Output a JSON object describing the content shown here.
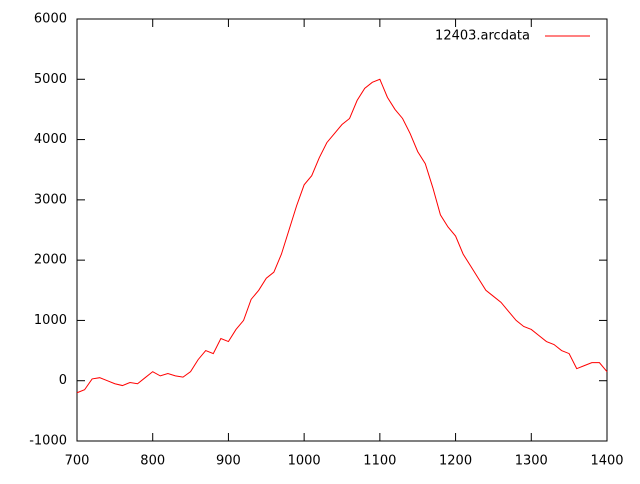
{
  "chart_data": {
    "type": "line",
    "x": [
      700,
      710,
      720,
      730,
      740,
      750,
      760,
      770,
      780,
      790,
      800,
      810,
      820,
      830,
      840,
      850,
      860,
      870,
      880,
      890,
      900,
      910,
      920,
      930,
      940,
      950,
      960,
      970,
      980,
      990,
      1000,
      1010,
      1020,
      1030,
      1040,
      1050,
      1060,
      1070,
      1080,
      1090,
      1100,
      1110,
      1120,
      1130,
      1140,
      1150,
      1160,
      1170,
      1180,
      1190,
      1200,
      1210,
      1220,
      1230,
      1240,
      1250,
      1260,
      1270,
      1280,
      1290,
      1300,
      1310,
      1320,
      1330,
      1340,
      1350,
      1360,
      1370,
      1380,
      1390,
      1400
    ],
    "series": [
      {
        "name": "12403.arcdata",
        "color": "#ff0000",
        "values": [
          -200,
          -150,
          30,
          50,
          0,
          -50,
          -80,
          -30,
          -50,
          50,
          150,
          80,
          120,
          80,
          60,
          150,
          350,
          500,
          450,
          700,
          650,
          850,
          1000,
          1350,
          1500,
          1700,
          1800,
          2100,
          2500,
          2900,
          3250,
          3400,
          3700,
          3950,
          4100,
          4250,
          4350,
          4650,
          4850,
          4950,
          5000,
          4700,
          4500,
          4350,
          4100,
          3800,
          3600,
          3200,
          2750,
          2550,
          2400,
          2100,
          1900,
          1700,
          1500,
          1400,
          1300,
          1150,
          1000,
          900,
          850,
          750,
          650,
          600,
          500,
          450,
          200,
          250,
          300,
          300,
          150
        ]
      }
    ],
    "xlim": [
      700,
      1400
    ],
    "xticks": [
      700,
      800,
      900,
      1000,
      1100,
      1200,
      1300,
      1400
    ],
    "ylim": [
      -1000,
      6000
    ],
    "yticks": [
      -1000,
      0,
      1000,
      2000,
      3000,
      4000,
      5000,
      6000
    ],
    "legend": "top-right"
  }
}
